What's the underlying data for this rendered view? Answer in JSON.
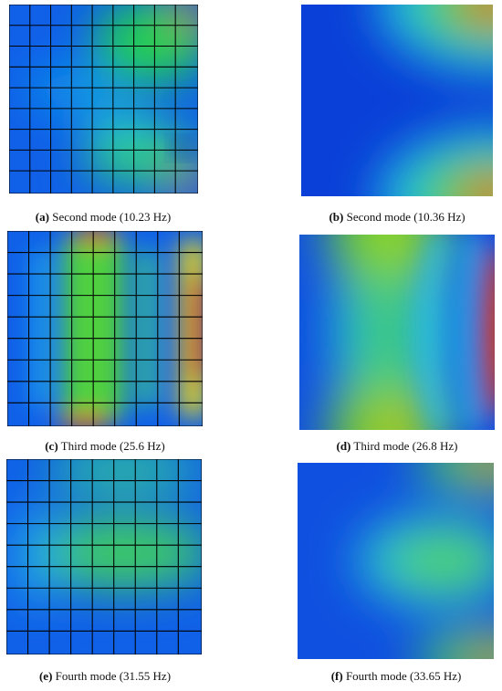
{
  "panels": [
    {
      "label": "(a)",
      "caption": "Second mode (10.23 Hz)"
    },
    {
      "label": "(b)",
      "caption": "Second mode (10.36 Hz)"
    },
    {
      "label": "(c)",
      "caption": "Third mode (25.6 Hz)"
    },
    {
      "label": "(d)",
      "caption": "Third mode (26.8 Hz)"
    },
    {
      "label": "(e)",
      "caption": "Fourth mode (31.55 Hz)"
    },
    {
      "label": "(f)",
      "caption": "Fourth mode (33.65 Hz)"
    }
  ]
}
